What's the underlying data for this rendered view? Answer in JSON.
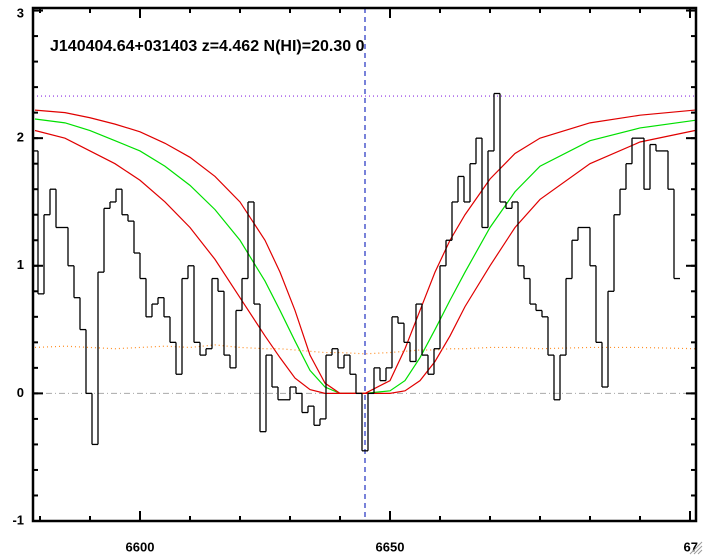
{
  "chart_data": {
    "type": "spectrum",
    "title": "J140404.64+031403 z=4.462 N(HI)=20.30 0",
    "xlim": [
      6578.6,
      6711.2
    ],
    "ylim": [
      -1,
      3.02
    ],
    "xticks": [
      6600,
      6650,
      {
        "value": 6710,
        "label": "67"
      }
    ],
    "yticks": [
      -1,
      0,
      1,
      2,
      3
    ],
    "flux": {
      "color": "#000000",
      "x": [
        6579,
        6580.2,
        6581.4,
        6582.6,
        6583.8,
        6585,
        6586.2,
        6587.4,
        6588.6,
        6589.8,
        6591,
        6592.2,
        6593.4,
        6594.6,
        6595.8,
        6597,
        6598.2,
        6599.4,
        6600.6,
        6601.8,
        6603,
        6604.2,
        6605.4,
        6606.6,
        6607.8,
        6609,
        6610.2,
        6611.4,
        6612.6,
        6613.8,
        6615,
        6616.2,
        6617.4,
        6618.6,
        6619.8,
        6621,
        6622.2,
        6623.4,
        6624.6,
        6625.8,
        6627,
        6628.2,
        6629.4,
        6630.6,
        6631.8,
        6633,
        6634.2,
        6635.4,
        6636.6,
        6637.8,
        6639,
        6640.2,
        6641.4,
        6642.6,
        6643.8,
        6645,
        6646.2,
        6647.4,
        6648.6,
        6649.8,
        6651,
        6652.2,
        6653.4,
        6654.6,
        6655.8,
        6657,
        6658.2,
        6659.4,
        6660.6,
        6661.8,
        6663,
        6664.2,
        6665.4,
        6666.6,
        6667.8,
        6669,
        6670.2,
        6671.4,
        6672.6,
        6673.8,
        6675,
        6676.2,
        6677.4,
        6678.6,
        6679.8,
        6681,
        6682.2,
        6683.4,
        6684.6,
        6685.8,
        6687,
        6688.2,
        6689.4,
        6690.6,
        6691.8,
        6693,
        6694.2,
        6695.4,
        6696.6,
        6697.8,
        6699,
        6700.2,
        6701.4,
        6702.6,
        6703.8,
        6705,
        6706.2,
        6707.4
      ],
      "values": [
        1.9,
        0.78,
        1.4,
        1.6,
        1.3,
        1.3,
        1.0,
        0.75,
        0.5,
        0.0,
        -0.4,
        0.95,
        1.45,
        1.5,
        1.6,
        1.4,
        1.35,
        1.1,
        0.9,
        0.6,
        0.7,
        0.75,
        0.6,
        0.4,
        0.15,
        0.9,
        1.0,
        0.4,
        0.3,
        0.35,
        0.9,
        0.8,
        0.3,
        0.2,
        0.65,
        0.9,
        1.5,
        0.7,
        -0.3,
        0.3,
        0.05,
        -0.05,
        -0.05,
        0.05,
        0.0,
        -0.15,
        -0.1,
        -0.25,
        -0.2,
        0.3,
        0.35,
        0.2,
        0.3,
        0.15,
        0.0,
        -0.45,
        0.0,
        0.2,
        0.1,
        0.2,
        0.6,
        0.55,
        0.4,
        0.25,
        0.7,
        0.3,
        0.15,
        0.35,
        1.0,
        1.2,
        1.5,
        1.7,
        1.5,
        1.8,
        2.0,
        1.3,
        1.9,
        2.35,
        1.5,
        1.45,
        1.5,
        1.0,
        0.9,
        0.7,
        0.65,
        0.6,
        0.3,
        -0.05,
        0.3,
        0.9,
        1.2,
        1.3,
        1.3,
        1.0,
        0.4,
        0.05,
        0.8,
        1.4,
        1.6,
        1.8,
        2.0,
        2.0,
        1.6,
        1.95,
        1.9,
        1.9,
        1.6,
        0.9
      ]
    },
    "model_x": [
      6579,
      6585,
      6590,
      6595,
      6600,
      6605,
      6610,
      6615,
      6620,
      6625,
      6628,
      6631,
      6634,
      6637,
      6640,
      6645,
      6650,
      6653,
      6656,
      6659,
      6662,
      6665,
      6670,
      6675,
      6680,
      6690,
      6700,
      6711
    ],
    "series": [
      {
        "color": "#00e000",
        "dash": "none",
        "values": [
          2.15,
          2.12,
          2.06,
          1.98,
          1.9,
          1.78,
          1.63,
          1.44,
          1.2,
          0.88,
          0.65,
          0.41,
          0.18,
          0.05,
          0.0,
          0.0,
          0.02,
          0.1,
          0.28,
          0.5,
          0.73,
          0.95,
          1.3,
          1.58,
          1.78,
          1.98,
          2.08,
          2.14
        ]
      },
      {
        "color": "#e00000",
        "dash": "none",
        "values": [
          2.22,
          2.2,
          2.16,
          2.11,
          2.05,
          1.96,
          1.85,
          1.7,
          1.5,
          1.2,
          0.95,
          0.65,
          0.3,
          0.08,
          0.0,
          0.0,
          0.1,
          0.35,
          0.65,
          0.95,
          1.2,
          1.4,
          1.68,
          1.88,
          2.0,
          2.12,
          2.18,
          2.22
        ]
      },
      {
        "color": "#e00000",
        "dash": "none",
        "values": [
          2.06,
          2.0,
          1.9,
          1.8,
          1.67,
          1.5,
          1.3,
          1.05,
          0.75,
          0.45,
          0.28,
          0.12,
          0.03,
          0.0,
          0.0,
          0.0,
          0.0,
          0.02,
          0.1,
          0.25,
          0.45,
          0.68,
          1.0,
          1.3,
          1.52,
          1.8,
          1.97,
          2.06
        ]
      },
      {
        "color": "#ff8c20",
        "dash": "1 3",
        "values": [
          0.36,
          0.37,
          0.36,
          0.35,
          0.36,
          0.37,
          0.36,
          0.38,
          0.36,
          0.35,
          0.35,
          0.34,
          0.33,
          0.32,
          0.32,
          0.31,
          0.32,
          0.33,
          0.34,
          0.34,
          0.35,
          0.35,
          0.36,
          0.36,
          0.35,
          0.36,
          0.36,
          0.35
        ]
      }
    ],
    "continuum_level": 2.33,
    "continuum_color": "#8a2be2",
    "zero_level": 0,
    "zero_color": "#aaaaaa",
    "line_center": 6645,
    "line_center_color": "#2030c0"
  }
}
